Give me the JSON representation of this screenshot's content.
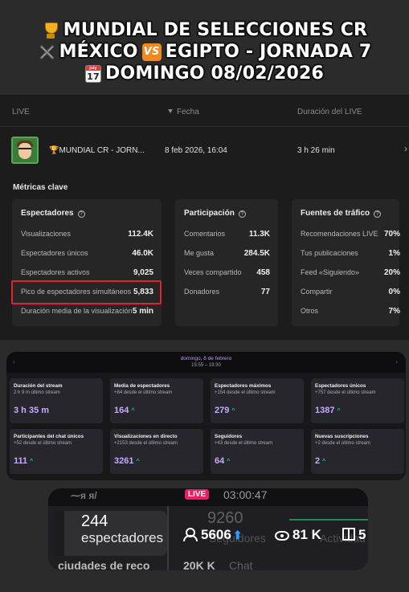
{
  "banner": {
    "line1": "MUNDIAL DE SELECCIONES CR",
    "line2_a": "MÉXICO",
    "line2_vs": "VS",
    "line2_b": "EGIPTO - JORNADA 7",
    "line3": "DOMINGO 08/02/2026",
    "calendar_top": "July",
    "calendar_day": "17"
  },
  "live_table": {
    "header_live": "LIVE",
    "header_fecha": "Fecha",
    "header_duracion": "Duración del LIVE",
    "row": {
      "title": "🏆MUNDIAL CR - JORN...",
      "fecha": "8 feb 2026, 16:04",
      "duracion": "3 h 26 min"
    },
    "metricas_title": "Métricas clave"
  },
  "espectadores": {
    "title": "Espectadores",
    "rows": [
      {
        "label": "Visualizaciones",
        "value": "112.4K"
      },
      {
        "label": "Espectadores únicos",
        "value": "46.0K"
      },
      {
        "label": "Espectadores activos",
        "value": "9,025"
      },
      {
        "label": "Pico de espectadores simultáneos",
        "value": "5,833"
      },
      {
        "label": "Duración media de la visualización",
        "value": "5 min"
      }
    ]
  },
  "participacion": {
    "title": "Participación",
    "rows": [
      {
        "label": "Comentarios",
        "value": "11.3K"
      },
      {
        "label": "Me gusta",
        "value": "284.5K"
      },
      {
        "label": "Veces compartido",
        "value": "458"
      },
      {
        "label": "Donadores",
        "value": "77"
      }
    ]
  },
  "trafico": {
    "title": "Fuentes de tráfico",
    "rows": [
      {
        "label": "Recomendaciones LIVE",
        "value": "70%"
      },
      {
        "label": "Tus publicaciones",
        "value": "1%"
      },
      {
        "label": "Feed «Siguiendo»",
        "value": "20%"
      },
      {
        "label": "Compartir",
        "value": "0%"
      },
      {
        "label": "Otros",
        "value": "7%"
      }
    ]
  },
  "stream_summary": {
    "date": "domingo, 8 de febrero",
    "range": "15:55 – 19:30",
    "cards": [
      {
        "label": "Duración del stream",
        "sub": "2 h 9 m último stream",
        "value": "3 h 35 m",
        "up": ""
      },
      {
        "label": "Media de espectadores",
        "sub": "+84 desde el último stream",
        "value": "164",
        "up": "^"
      },
      {
        "label": "Espectadores máximos",
        "sub": "+154 desde el último stream",
        "value": "279",
        "up": "^"
      },
      {
        "label": "Espectadores únicos",
        "sub": "+757 desde el último stream",
        "value": "1387",
        "up": "^"
      },
      {
        "label": "Participantes del chat únicos",
        "sub": "+52 desde el último stream",
        "value": "111",
        "up": "^"
      },
      {
        "label": "Visualizaciones en directo",
        "sub": "+2153 desde el último stream",
        "value": "3261",
        "up": "^"
      },
      {
        "label": "Seguidores",
        "sub": "+43 desde el último stream",
        "value": "64",
        "up": "^"
      },
      {
        "label": "Nuevas suscripciones",
        "sub": "+2 desde el último stream",
        "value": "2",
        "up": "^"
      }
    ]
  },
  "bottom": {
    "cut_top": "⁓ᴙ ᴙ/",
    "live_tag": "LIVE",
    "timer": "03:00:47",
    "viewers_big": "244",
    "viewers_label": "espectadores",
    "ghost_number": "9260",
    "ghost_seguidores": "Seguidores",
    "ghost_actividad": "Actividad",
    "stat_people": "5606",
    "stat_eye": "81 K",
    "stat_gift": "5",
    "cut_bottom_left": "ciudades de reco",
    "cut_bottom_mid": "20K K",
    "cut_bottom_right": "Chat"
  }
}
